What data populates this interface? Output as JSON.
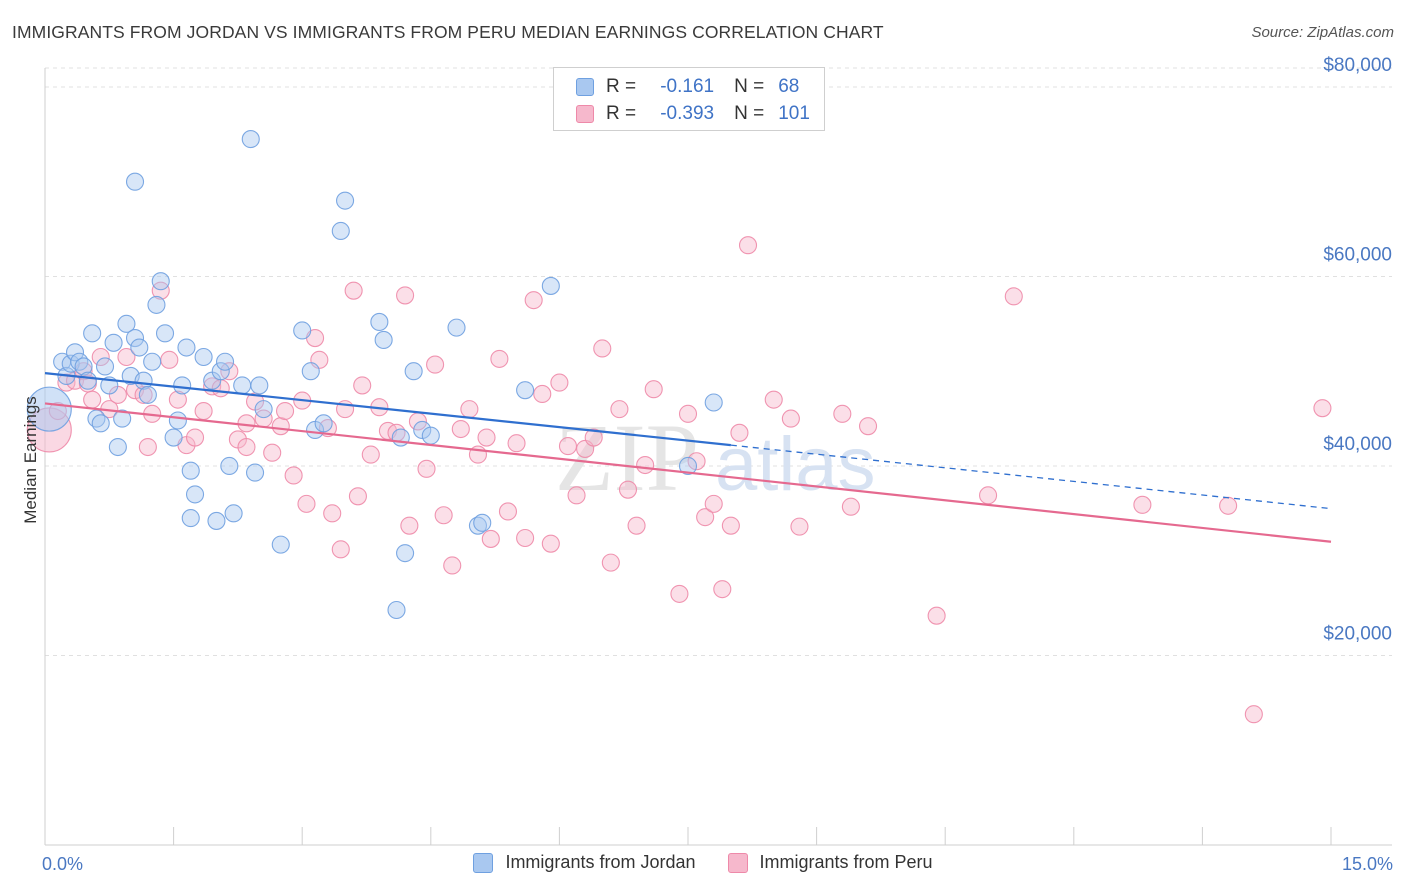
{
  "title": "IMMIGRANTS FROM JORDAN VS IMMIGRANTS FROM PERU MEDIAN EARNINGS CORRELATION CHART",
  "source": "Source: ZipAtlas.com",
  "watermark": "ZIPatlas",
  "legend": {
    "rows": [
      {
        "r_label": "R =",
        "r_value": "-0.161",
        "n_label": "N =",
        "n_value": "68",
        "color": "#a9c8f0"
      },
      {
        "r_label": "R =",
        "r_value": "-0.393",
        "n_label": "N =",
        "n_value": "101",
        "color": "#f6b8cc"
      }
    ]
  },
  "bottom_legend": [
    {
      "label": "Immigrants from Jordan",
      "color": "#a9c8f0"
    },
    {
      "label": "Immigrants from Peru",
      "color": "#f6b8cc"
    }
  ],
  "chart_data": {
    "type": "scatter",
    "title": "IMMIGRANTS FROM JORDAN VS IMMIGRANTS FROM PERU MEDIAN EARNINGS CORRELATION CHART",
    "xlabel": "",
    "ylabel": "Median Earnings",
    "xlim": [
      0,
      15
    ],
    "ylim": [
      0,
      82000
    ],
    "x_tick_labels": [
      "0.0%",
      "15.0%"
    ],
    "y_ticks": [
      20000,
      40000,
      60000,
      80000
    ],
    "y_tick_labels": [
      "$20,000",
      "$40,000",
      "$60,000",
      "$80,000"
    ],
    "grid": "horizontal dashed",
    "legend_position": "top-center",
    "series": [
      {
        "name": "Immigrants from Jordan",
        "color": "#6fa0e0",
        "fill": "#a9c8f0",
        "trend": {
          "x0": 0.0,
          "y0": 49800,
          "x1": 8.0,
          "y1": 42200,
          "x_dash_end": 15.0,
          "y_dash_end": 35500,
          "color": "#2f6fcf"
        },
        "points": [
          [
            0.05,
            46000,
            "big"
          ],
          [
            0.2,
            51000
          ],
          [
            0.25,
            49500
          ],
          [
            0.3,
            50800
          ],
          [
            0.35,
            52000
          ],
          [
            0.4,
            51000
          ],
          [
            0.45,
            50500
          ],
          [
            0.5,
            49000
          ],
          [
            0.55,
            54000
          ],
          [
            0.6,
            45000
          ],
          [
            0.65,
            44500
          ],
          [
            0.7,
            50500
          ],
          [
            0.75,
            48500
          ],
          [
            0.8,
            53000
          ],
          [
            0.85,
            42000
          ],
          [
            0.9,
            45000
          ],
          [
            0.95,
            55000
          ],
          [
            1.0,
            49500
          ],
          [
            1.05,
            53500
          ],
          [
            1.1,
            52500
          ],
          [
            1.15,
            49000
          ],
          [
            1.2,
            47500
          ],
          [
            1.25,
            51000
          ],
          [
            1.3,
            57000
          ],
          [
            1.35,
            59500
          ],
          [
            1.4,
            54000
          ],
          [
            1.05,
            70000
          ],
          [
            1.5,
            43000
          ],
          [
            1.55,
            44800
          ],
          [
            1.6,
            48500
          ],
          [
            1.65,
            52500
          ],
          [
            1.7,
            39500
          ],
          [
            1.75,
            37000
          ],
          [
            1.7,
            34500
          ],
          [
            1.85,
            51500
          ],
          [
            1.95,
            49000
          ],
          [
            2.0,
            34200
          ],
          [
            2.05,
            50000
          ],
          [
            2.1,
            51000
          ],
          [
            2.15,
            40000
          ],
          [
            2.2,
            35000
          ],
          [
            2.3,
            48500
          ],
          [
            2.4,
            74500
          ],
          [
            2.45,
            39300
          ],
          [
            2.5,
            48500
          ],
          [
            2.55,
            46000
          ],
          [
            2.75,
            31700
          ],
          [
            3.0,
            54300
          ],
          [
            3.1,
            50000
          ],
          [
            3.15,
            43800
          ],
          [
            3.25,
            44500
          ],
          [
            3.45,
            64800
          ],
          [
            3.5,
            68000
          ],
          [
            3.9,
            55200
          ],
          [
            3.95,
            53300
          ],
          [
            4.1,
            24800
          ],
          [
            4.2,
            30800
          ],
          [
            4.3,
            50000
          ],
          [
            4.4,
            43800
          ],
          [
            4.5,
            43200
          ],
          [
            4.8,
            54600
          ],
          [
            5.05,
            33700
          ],
          [
            5.1,
            34000
          ],
          [
            5.6,
            48000
          ],
          [
            5.9,
            59000
          ],
          [
            7.5,
            40000
          ],
          [
            7.8,
            46700
          ],
          [
            4.15,
            43000
          ]
        ]
      },
      {
        "name": "Immigrants from Peru",
        "color": "#ee89a9",
        "fill": "#f6b8cc",
        "trend": {
          "x0": 0.0,
          "y0": 46600,
          "x1": 15.0,
          "y1": 32000,
          "color": "#e5698f"
        },
        "points": [
          [
            0.05,
            43800,
            "big"
          ],
          [
            0.15,
            45800
          ],
          [
            0.25,
            48800
          ],
          [
            0.35,
            49000
          ],
          [
            0.45,
            50000
          ],
          [
            0.55,
            47000
          ],
          [
            0.65,
            51500
          ],
          [
            0.75,
            46000
          ],
          [
            0.85,
            47500
          ],
          [
            0.95,
            51500
          ],
          [
            1.05,
            48000
          ],
          [
            1.15,
            47500
          ],
          [
            1.25,
            45500
          ],
          [
            1.35,
            58500
          ],
          [
            1.45,
            51200
          ],
          [
            1.55,
            47000
          ],
          [
            1.65,
            42200
          ],
          [
            1.75,
            43000
          ],
          [
            1.85,
            45800
          ],
          [
            1.95,
            48400
          ],
          [
            2.05,
            48200
          ],
          [
            2.15,
            50000
          ],
          [
            2.25,
            42800
          ],
          [
            2.35,
            42000
          ],
          [
            2.45,
            46800
          ],
          [
            2.55,
            45000
          ],
          [
            2.65,
            41400
          ],
          [
            2.75,
            44200
          ],
          [
            2.8,
            45800
          ],
          [
            2.9,
            39000
          ],
          [
            3.0,
            46900
          ],
          [
            3.05,
            36000
          ],
          [
            3.15,
            53500
          ],
          [
            3.2,
            51200
          ],
          [
            3.3,
            44000
          ],
          [
            3.35,
            35000
          ],
          [
            3.45,
            31200
          ],
          [
            3.5,
            46000
          ],
          [
            3.6,
            58500
          ],
          [
            3.65,
            36800
          ],
          [
            3.7,
            48500
          ],
          [
            3.8,
            41200
          ],
          [
            3.9,
            46200
          ],
          [
            4.0,
            43700
          ],
          [
            4.1,
            43500
          ],
          [
            4.2,
            58000
          ],
          [
            4.25,
            33700
          ],
          [
            4.35,
            44700
          ],
          [
            4.45,
            39700
          ],
          [
            4.55,
            50700
          ],
          [
            4.65,
            34800
          ],
          [
            4.75,
            29500
          ],
          [
            4.85,
            43900
          ],
          [
            4.95,
            46000
          ],
          [
            5.05,
            41200
          ],
          [
            5.15,
            43000
          ],
          [
            5.2,
            32300
          ],
          [
            5.3,
            51300
          ],
          [
            5.4,
            35200
          ],
          [
            5.5,
            42400
          ],
          [
            5.6,
            32400
          ],
          [
            5.7,
            57500
          ],
          [
            5.8,
            47600
          ],
          [
            5.9,
            31800
          ],
          [
            6.0,
            48800
          ],
          [
            6.1,
            42100
          ],
          [
            6.2,
            36900
          ],
          [
            6.3,
            41800
          ],
          [
            6.4,
            43000
          ],
          [
            6.5,
            52400
          ],
          [
            6.6,
            29800
          ],
          [
            6.7,
            46000
          ],
          [
            6.8,
            37500
          ],
          [
            6.9,
            33700
          ],
          [
            7.0,
            40100
          ],
          [
            7.1,
            48100
          ],
          [
            7.4,
            26500
          ],
          [
            7.5,
            45500
          ],
          [
            7.6,
            40500
          ],
          [
            7.7,
            34600
          ],
          [
            7.8,
            36000
          ],
          [
            7.9,
            27000
          ],
          [
            8.0,
            33700
          ],
          [
            8.1,
            43500
          ],
          [
            8.2,
            63300
          ],
          [
            8.5,
            47000
          ],
          [
            8.7,
            45000
          ],
          [
            8.8,
            33600
          ],
          [
            9.3,
            45500
          ],
          [
            9.4,
            35700
          ],
          [
            10.4,
            24200
          ],
          [
            11.0,
            36900
          ],
          [
            11.3,
            57900
          ],
          [
            12.8,
            35900
          ],
          [
            13.8,
            35800
          ],
          [
            14.1,
            13800
          ],
          [
            14.9,
            46100
          ],
          [
            0.5,
            48700
          ],
          [
            1.2,
            42000
          ],
          [
            2.35,
            44500
          ],
          [
            9.6,
            44200
          ]
        ]
      }
    ]
  }
}
